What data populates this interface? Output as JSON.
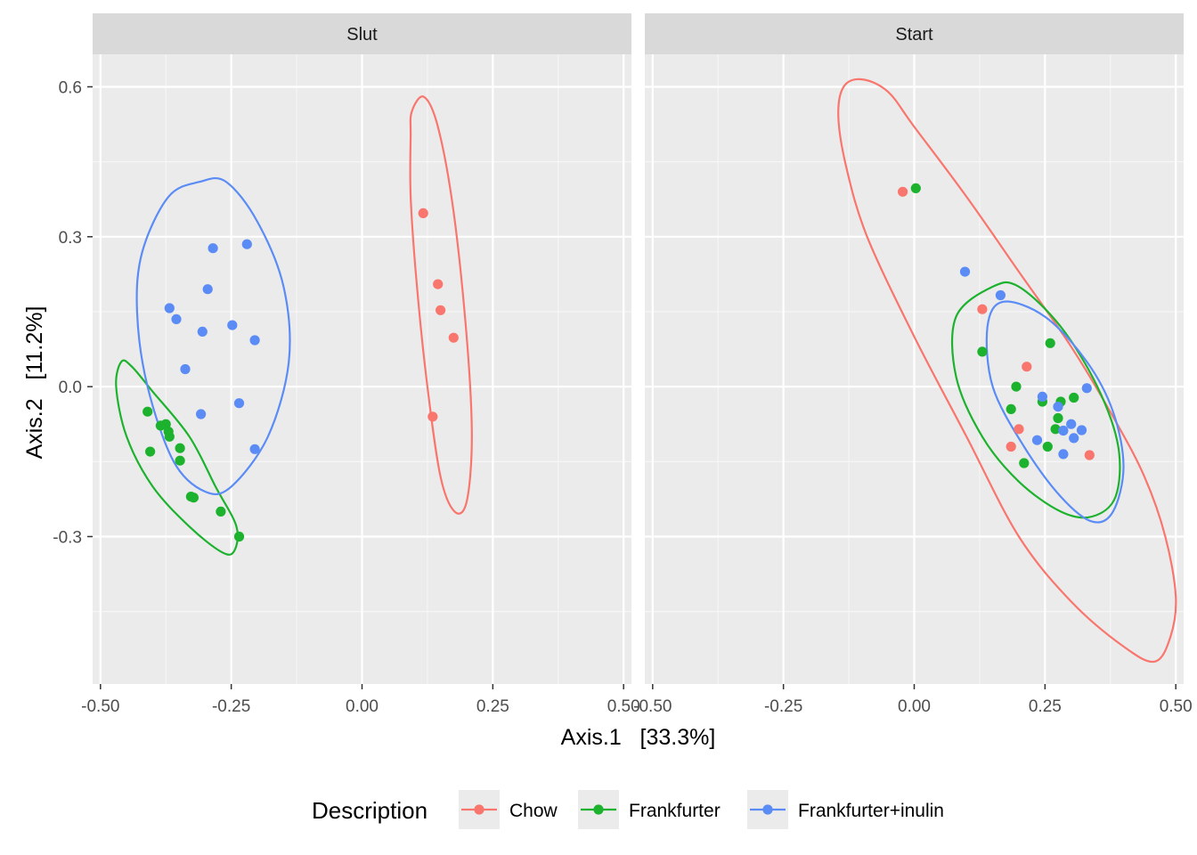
{
  "chart_data": {
    "type": "scatter",
    "facets": [
      "Slut",
      "Start"
    ],
    "xlabel": "Axis.1   [33.3%]",
    "ylabel": "Axis.2   [11.2%]",
    "x_ticks": [
      -0.5,
      -0.25,
      0.0,
      0.25,
      0.5
    ],
    "x_tick_labels": [
      "-0.50",
      "-0.25",
      "0.00",
      "0.25",
      "0.50"
    ],
    "y_ticks": [
      -0.3,
      0.0,
      0.3,
      0.6
    ],
    "y_tick_labels": [
      "-0.3",
      "0.0",
      "0.3",
      "0.6"
    ],
    "xlim": [
      -0.515,
      0.515
    ],
    "ylim": [
      -0.595,
      0.665
    ],
    "grid": true,
    "legend": {
      "title": "Description",
      "position": "bottom",
      "entries": [
        "Chow",
        "Frankfurter",
        "Frankfurter+inulin"
      ]
    },
    "colors": {
      "Chow": "#F8766D",
      "Frankfurter": "#1DB22E",
      "Frankfurter+inulin": "#5B8CF5"
    },
    "series": [
      {
        "name": "Chow",
        "points": {
          "Slut": [
            [
              0.117,
              0.347
            ],
            [
              0.145,
              0.205
            ],
            [
              0.15,
              0.153
            ],
            [
              0.175,
              0.098
            ],
            [
              0.135,
              -0.06
            ]
          ],
          "Start": [
            [
              -0.022,
              0.39
            ],
            [
              0.13,
              0.155
            ],
            [
              0.215,
              0.04
            ],
            [
              0.2,
              -0.085
            ],
            [
              0.185,
              -0.12
            ],
            [
              0.335,
              -0.137
            ]
          ]
        },
        "ellipses": {
          "Slut": [
            [
              0.095,
              0.55
            ],
            [
              0.118,
              0.58
            ],
            [
              0.145,
              0.52
            ],
            [
              0.175,
              0.35
            ],
            [
              0.2,
              0.1
            ],
            [
              0.21,
              -0.1
            ],
            [
              0.2,
              -0.23
            ],
            [
              0.177,
              -0.25
            ],
            [
              0.15,
              -0.18
            ],
            [
              0.125,
              0.0
            ],
            [
              0.105,
              0.2
            ],
            [
              0.093,
              0.38
            ],
            [
              0.093,
              0.5
            ],
            [
              0.095,
              0.55
            ]
          ],
          "Start": [
            [
              -0.1,
              0.615
            ],
            [
              -0.135,
              0.6
            ],
            [
              -0.145,
              0.54
            ],
            [
              -0.13,
              0.44
            ],
            [
              -0.09,
              0.3
            ],
            [
              0.0,
              0.1
            ],
            [
              0.1,
              -0.1
            ],
            [
              0.2,
              -0.3
            ],
            [
              0.3,
              -0.43
            ],
            [
              0.4,
              -0.52
            ],
            [
              0.46,
              -0.55
            ],
            [
              0.49,
              -0.5
            ],
            [
              0.5,
              -0.42
            ],
            [
              0.48,
              -0.3
            ],
            [
              0.44,
              -0.18
            ],
            [
              0.38,
              -0.06
            ],
            [
              0.3,
              0.08
            ],
            [
              0.2,
              0.23
            ],
            [
              0.1,
              0.38
            ],
            [
              0.0,
              0.52
            ],
            [
              -0.05,
              0.59
            ],
            [
              -0.1,
              0.615
            ]
          ]
        }
      },
      {
        "name": "Frankfurter",
        "points": {
          "Slut": [
            [
              -0.41,
              -0.05
            ],
            [
              -0.405,
              -0.13
            ],
            [
              -0.385,
              -0.078
            ],
            [
              -0.375,
              -0.075
            ],
            [
              -0.37,
              -0.09
            ],
            [
              -0.368,
              -0.1
            ],
            [
              -0.348,
              -0.123
            ],
            [
              -0.348,
              -0.148
            ],
            [
              -0.327,
              -0.22
            ],
            [
              -0.322,
              -0.222
            ],
            [
              -0.27,
              -0.25
            ],
            [
              -0.235,
              -0.3
            ]
          ],
          "Start": [
            [
              0.003,
              0.397
            ],
            [
              0.13,
              0.07
            ],
            [
              0.26,
              0.087
            ],
            [
              0.195,
              0.0
            ],
            [
              0.185,
              -0.045
            ],
            [
              0.245,
              -0.03
            ],
            [
              0.28,
              -0.03
            ],
            [
              0.305,
              -0.022
            ],
            [
              0.275,
              -0.063
            ],
            [
              0.27,
              -0.085
            ],
            [
              0.255,
              -0.12
            ],
            [
              0.21,
              -0.153
            ]
          ]
        },
        "ellipses": {
          "Slut": [
            [
              -0.46,
              0.05
            ],
            [
              -0.47,
              0.0
            ],
            [
              -0.45,
              -0.1
            ],
            [
              -0.4,
              -0.2
            ],
            [
              -0.33,
              -0.28
            ],
            [
              -0.27,
              -0.33
            ],
            [
              -0.245,
              -0.33
            ],
            [
              -0.24,
              -0.28
            ],
            [
              -0.28,
              -0.2
            ],
            [
              -0.33,
              -0.1
            ],
            [
              -0.4,
              -0.01
            ],
            [
              -0.44,
              0.04
            ],
            [
              -0.46,
              0.05
            ]
          ],
          "Start": [
            [
              0.15,
              0.2
            ],
            [
              0.08,
              0.14
            ],
            [
              0.08,
              0.02
            ],
            [
              0.13,
              -0.1
            ],
            [
              0.2,
              -0.19
            ],
            [
              0.28,
              -0.25
            ],
            [
              0.34,
              -0.26
            ],
            [
              0.385,
              -0.22
            ],
            [
              0.39,
              -0.12
            ],
            [
              0.35,
              0.0
            ],
            [
              0.28,
              0.12
            ],
            [
              0.2,
              0.2
            ],
            [
              0.15,
              0.2
            ]
          ]
        }
      },
      {
        "name": "Frankfurter+inulin",
        "points": {
          "Slut": [
            [
              -0.285,
              0.277
            ],
            [
              -0.22,
              0.285
            ],
            [
              -0.295,
              0.195
            ],
            [
              -0.368,
              0.157
            ],
            [
              -0.355,
              0.135
            ],
            [
              -0.305,
              0.11
            ],
            [
              -0.248,
              0.123
            ],
            [
              -0.205,
              0.093
            ],
            [
              -0.338,
              0.035
            ],
            [
              -0.308,
              -0.055
            ],
            [
              -0.235,
              -0.033
            ],
            [
              -0.205,
              -0.125
            ]
          ],
          "Start": [
            [
              0.097,
              0.23
            ],
            [
              0.165,
              0.183
            ],
            [
              0.33,
              -0.003
            ],
            [
              0.245,
              -0.02
            ],
            [
              0.275,
              -0.04
            ],
            [
              0.3,
              -0.075
            ],
            [
              0.285,
              -0.088
            ],
            [
              0.32,
              -0.087
            ],
            [
              0.305,
              -0.103
            ],
            [
              0.235,
              -0.107
            ],
            [
              0.285,
              -0.135
            ]
          ]
        },
        "ellipses": {
          "Slut": [
            [
              -0.31,
              0.41
            ],
            [
              -0.37,
              0.38
            ],
            [
              -0.42,
              0.27
            ],
            [
              -0.43,
              0.15
            ],
            [
              -0.41,
              0.0
            ],
            [
              -0.36,
              -0.15
            ],
            [
              -0.3,
              -0.21
            ],
            [
              -0.25,
              -0.2
            ],
            [
              -0.18,
              -0.1
            ],
            [
              -0.14,
              0.05
            ],
            [
              -0.15,
              0.2
            ],
            [
              -0.2,
              0.33
            ],
            [
              -0.26,
              0.41
            ],
            [
              -0.31,
              0.41
            ]
          ],
          "Start": [
            [
              0.17,
              0.17
            ],
            [
              0.14,
              0.12
            ],
            [
              0.15,
              0.0
            ],
            [
              0.21,
              -0.12
            ],
            [
              0.28,
              -0.22
            ],
            [
              0.34,
              -0.27
            ],
            [
              0.38,
              -0.25
            ],
            [
              0.4,
              -0.16
            ],
            [
              0.38,
              -0.05
            ],
            [
              0.33,
              0.05
            ],
            [
              0.25,
              0.14
            ],
            [
              0.17,
              0.17
            ]
          ]
        }
      }
    ]
  }
}
